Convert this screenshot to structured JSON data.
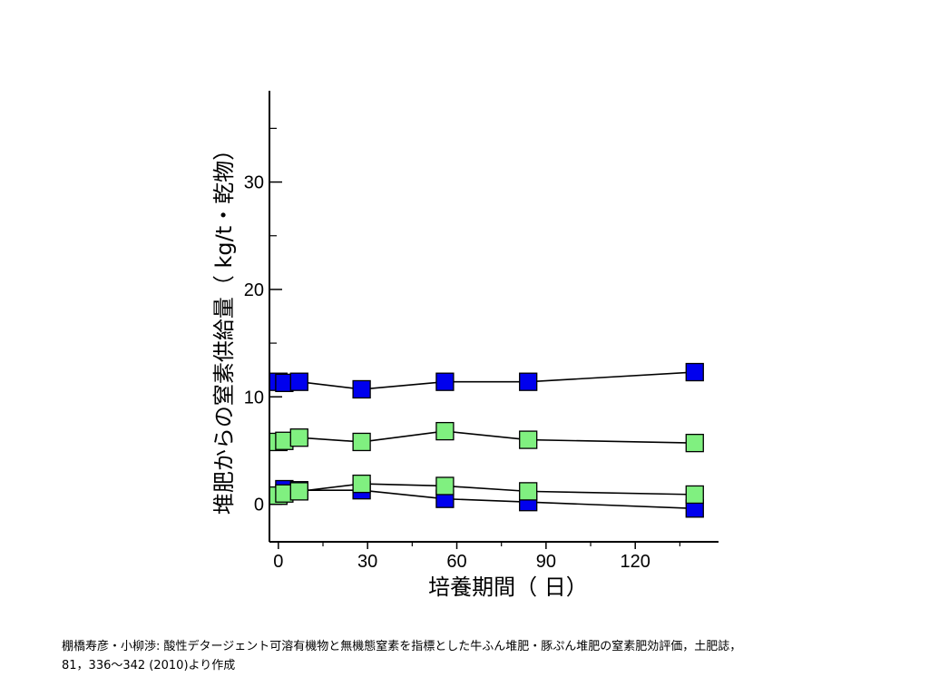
{
  "chart_data": {
    "type": "line",
    "xlabel": "培養期間（ 日）",
    "ylabel": "堆肥からの窒素供給量（ kg/t・乾物）",
    "xlim": [
      -3,
      148
    ],
    "ylim": [
      -3.5,
      38.5
    ],
    "x_ticks": [
      0,
      30,
      60,
      90,
      120
    ],
    "y_ticks": [
      0,
      10,
      20,
      30
    ],
    "grid": false,
    "legend": "none",
    "series": [
      {
        "color": "#0000ee",
        "x": [
          0,
          2,
          7,
          28,
          56,
          84,
          140
        ],
        "y": [
          11.4,
          11.3,
          11.4,
          10.7,
          11.4,
          11.4,
          12.3
        ]
      },
      {
        "color": "#80f080",
        "x": [
          0,
          2,
          7,
          28,
          56,
          84,
          140
        ],
        "y": [
          5.8,
          5.9,
          6.2,
          5.8,
          6.8,
          6.0,
          5.7
        ]
      },
      {
        "color": "#0000ee",
        "x": [
          0,
          2,
          7,
          28,
          56,
          84,
          140
        ],
        "y": [
          0.8,
          1.4,
          1.3,
          1.3,
          0.5,
          0.2,
          -0.4
        ]
      },
      {
        "color": "#80f080",
        "x": [
          0,
          2,
          7,
          28,
          56,
          84,
          140
        ],
        "y": [
          0.8,
          1.0,
          1.2,
          1.9,
          1.7,
          1.2,
          0.9
        ]
      }
    ]
  },
  "citation": {
    "line1": "棚橋寿彦・小柳渉: 酸性デタージェント可溶有機物と無機態窒素を指標とした牛ふん堆肥・豚ぷん堆肥の窒素肥効評価，土肥誌，",
    "line2": "81，336〜342 (2010)より作成"
  }
}
